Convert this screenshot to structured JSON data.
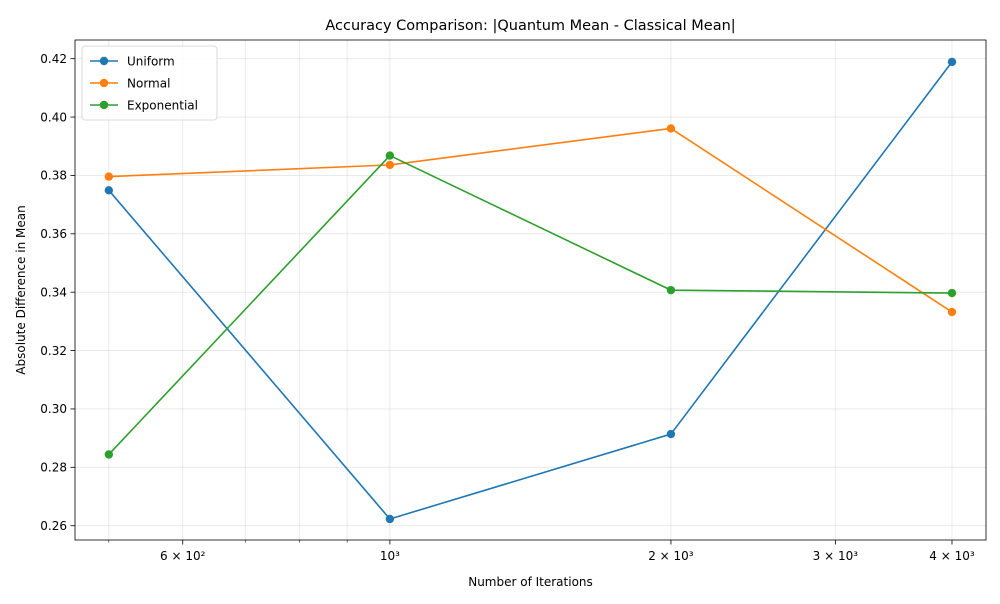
{
  "chart_data": {
    "type": "line",
    "title": "Accuracy Comparison: |Quantum Mean - Classical Mean|",
    "xlabel": "Number of Iterations",
    "ylabel": "Absolute Difference in Mean",
    "x_scale": "log",
    "x": [
      500,
      1000,
      2000,
      4000
    ],
    "xlim": [
      460,
      4350
    ],
    "ylim": [
      0.2551,
      0.4264
    ],
    "x_ticks": [
      {
        "value": 600,
        "label": "6 × 10²"
      },
      {
        "value": 1000,
        "label": "10³"
      },
      {
        "value": 2000,
        "label": "2 × 10³"
      },
      {
        "value": 3000,
        "label": "3 × 10³"
      },
      {
        "value": 4000,
        "label": "4 × 10³"
      }
    ],
    "x_minor_ticks": [
      500,
      700,
      800,
      900
    ],
    "y_ticks": [
      {
        "value": 0.26,
        "label": "0.26"
      },
      {
        "value": 0.28,
        "label": "0.28"
      },
      {
        "value": 0.3,
        "label": "0.30"
      },
      {
        "value": 0.32,
        "label": "0.32"
      },
      {
        "value": 0.34,
        "label": "0.34"
      },
      {
        "value": 0.36,
        "label": "0.36"
      },
      {
        "value": 0.38,
        "label": "0.38"
      },
      {
        "value": 0.4,
        "label": "0.40"
      },
      {
        "value": 0.42,
        "label": "0.42"
      }
    ],
    "grid": true,
    "legend_position": "top-left",
    "series": [
      {
        "name": "Uniform",
        "color": "#1f77b4",
        "values": [
          0.3749,
          0.2623,
          0.2914,
          0.4189
        ]
      },
      {
        "name": "Normal",
        "color": "#ff7f0e",
        "values": [
          0.3796,
          0.3836,
          0.3961,
          0.3332
        ]
      },
      {
        "name": "Exponential",
        "color": "#2ca02c",
        "values": [
          0.2844,
          0.3868,
          0.3407,
          0.3397
        ]
      }
    ]
  }
}
